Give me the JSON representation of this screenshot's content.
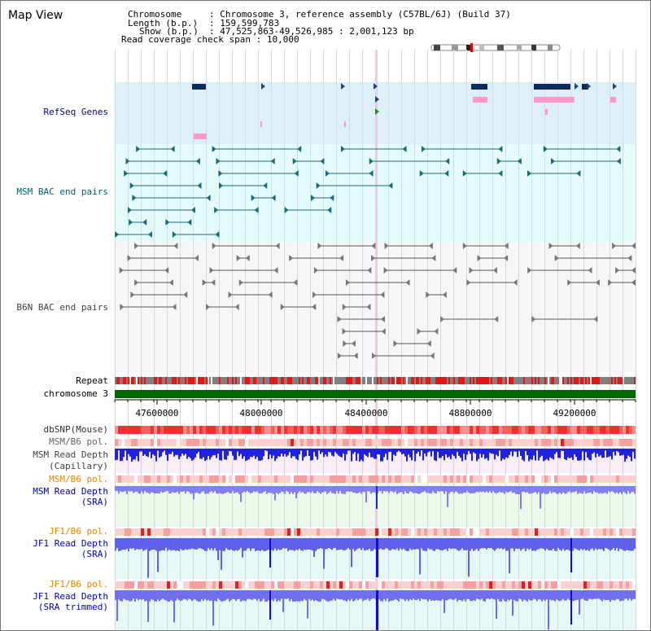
{
  "title": "Map View",
  "header": {
    "chromosome_key": "Chromosome",
    "chromosome_val": "Chromosome 3, reference assembly (C57BL/6J) (Build 37)",
    "length_key": "Length (b.p.)",
    "length_val": "159,599,783",
    "show_key": "Show (b.p.)",
    "show_val": "47,525,863-49,526,985 : 2,001,123 bp",
    "coverage_key": "Read coverage check span",
    "coverage_val": "10,000"
  },
  "tracks": {
    "refseq": "RefSeq Genes",
    "msm_bac": "MSM BAC end pairs",
    "b6n_bac": "B6N BAC end pairs",
    "repeat": "Repeat",
    "chromosome": "chromosome 3",
    "dbsnp": "dbSNP(Mouse)",
    "msm_b6_pol_1": "MSM/B6 pol.",
    "msm_read_depth_cap_1": "MSM Read Depth",
    "msm_read_depth_cap_2": "(Capillary)",
    "msm_b6_pol_2": "MSM/B6 pol.",
    "msm_read_depth_sra": "MSM Read Depth",
    "msm_read_depth_sra_2": "(SRA)",
    "jf1_b6_pol_1": "JF1/B6 pol.",
    "jf1_read_depth_sra_1": "JF1 Read Depth",
    "jf1_read_depth_sra_2": "(SRA)",
    "jf1_b6_pol_2": "JF1/B6 pol.",
    "jf1_read_depth_trim_1": "JF1 Read Depth",
    "jf1_read_depth_trim_2": "(SRA trimmed)"
  },
  "axis": {
    "ticks": [
      "47600000",
      "48000000",
      "48400000",
      "48800000",
      "49200000"
    ]
  },
  "colors": {
    "refseq_bg": "#ddf0fa",
    "msm_bg": "#e6fbfb",
    "b6n_bg": "#f6f6f8",
    "repeat_red": "#e01818",
    "chromosome_green": "#006600",
    "label_navy": "#000080",
    "label_teal": "#006070",
    "label_gray": "#404040",
    "label_orange": "#e08800",
    "label_blue": "#0000c0"
  }
}
